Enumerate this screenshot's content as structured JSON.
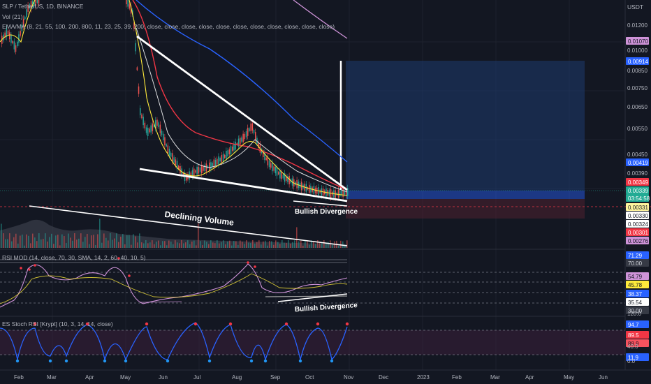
{
  "header": {
    "symbol": "SLP / TetherUS, 1D, BINANCE",
    "vol_label": "Vol (21)",
    "ema_label": "EMA/MA (8, 21, 55, 100, 200, 800, 11, 23, 25, 39, 200, close, close, close, close, close, close, close, close, close, close, close)",
    "rsi_label": "RSI MOD (14, close, 70, 30, SMA, 14, 2, 60, 40, 10, 5)",
    "stoch_label": "ES Stoch RSI [Krypt] (10, 3, 14, 14, close)"
  },
  "axis": {
    "currency": "USDT",
    "time_labels": [
      "Feb",
      "Mar",
      "Apr",
      "May",
      "Jun",
      "Jul",
      "Aug",
      "Sep",
      "Oct",
      "Nov",
      "Dec",
      "2023",
      "Feb",
      "Mar",
      "Apr",
      "May",
      "Jun"
    ],
    "price_ticks": [
      "0.01200",
      "0.01000",
      "0.00850",
      "0.00750",
      "0.00650",
      "0.00550",
      "0.00450",
      "0.00390"
    ]
  },
  "price_badges": [
    {
      "text": "0.01070",
      "bg": "#ce93d8",
      "fg": "#131722"
    },
    {
      "text": "0.00914",
      "bg": "#2962ff",
      "fg": "#ffffff"
    },
    {
      "text": "0.00419",
      "bg": "#2962ff",
      "fg": "#ffffff"
    },
    {
      "text": "0.00349",
      "bg": "#f23645",
      "fg": "#ffffff"
    },
    {
      "text": "0.00339",
      "bg": "#22ab94",
      "fg": "#ffffff"
    },
    {
      "text": "03:54:58",
      "bg": "#22ab94",
      "fg": "#ffffff"
    },
    {
      "text": "0.00331",
      "bg": "#fff59d",
      "fg": "#131722"
    },
    {
      "text": "0.00330",
      "bg": "#ffffff",
      "fg": "#131722"
    },
    {
      "text": "0.00324",
      "bg": "#ffffff",
      "fg": "#131722"
    },
    {
      "text": "0.00301",
      "bg": "#f23645",
      "fg": "#ffffff"
    },
    {
      "text": "0.00276",
      "bg": "#ce93d8",
      "fg": "#131722"
    }
  ],
  "rsi_badges": [
    {
      "text": "71.29",
      "bg": "#2962ff",
      "fg": "#ffffff"
    },
    {
      "text": "70.00",
      "bg": "#363a45",
      "fg": "#d1d4dc"
    },
    {
      "text": "54.79",
      "bg": "#ce93d8",
      "fg": "#131722"
    },
    {
      "text": "45.78",
      "bg": "#ffeb3b",
      "fg": "#131722"
    },
    {
      "text": "38.37",
      "bg": "#2962ff",
      "fg": "#ffffff"
    },
    {
      "text": "35.54",
      "bg": "#ffffff",
      "fg": "#131722"
    },
    {
      "text": "30.00",
      "bg": "#363a45",
      "fg": "#d1d4dc"
    }
  ],
  "stoch_badges": [
    {
      "text": "94.7",
      "bg": "#2962ff",
      "fg": "#ffffff"
    },
    {
      "text": "89.5",
      "bg": "#f23645",
      "fg": "#ffffff"
    },
    {
      "text": "88.9",
      "bg": "#f7525f",
      "fg": "#131722"
    },
    {
      "text": "11.9",
      "bg": "#2962ff",
      "fg": "#ffffff"
    }
  ],
  "stoch_ticks": [
    "120.0",
    "40.0",
    "0.0"
  ],
  "annotations": {
    "declining_volume": "Declining Volume",
    "bullish_div_price": "Bullish Divergence",
    "bullish_div_rsi": "Bullish Divergence"
  },
  "chart_data": {
    "type": "line",
    "price_axis_range": [
      0.0026,
      0.0133
    ],
    "lines": [
      {
        "name": "price",
        "color": "#ffffff",
        "points": [
          [
            "Feb",
            0.0118
          ],
          [
            "Mar",
            0.0135
          ],
          [
            "Apr",
            0.0142
          ],
          [
            "May",
            0.011
          ],
          [
            "Jun",
            0.0039
          ],
          [
            "Jul",
            0.004
          ],
          [
            "Aug",
            0.005
          ],
          [
            "Sep",
            0.0037
          ],
          [
            "Oct",
            0.0033
          ],
          [
            "Nov",
            0.0034
          ]
        ]
      },
      {
        "name": "ema-red",
        "color": "#f23645",
        "points": [
          [
            "May",
            0.012
          ],
          [
            "Jun",
            0.0075
          ],
          [
            "Jul",
            0.005
          ],
          [
            "Aug",
            0.0044
          ],
          [
            "Sep",
            0.0042
          ],
          [
            "Oct",
            0.0037
          ],
          [
            "Nov",
            0.0035
          ]
        ]
      },
      {
        "name": "ema-blue",
        "color": "#2962ff",
        "points": [
          [
            "May",
            0.014
          ],
          [
            "Jun",
            0.0097
          ],
          [
            "Jul",
            0.0076
          ],
          [
            "Aug",
            0.0066
          ],
          [
            "Sep",
            0.0055
          ],
          [
            "Oct",
            0.0047
          ],
          [
            "Nov",
            0.0042
          ]
        ]
      }
    ],
    "rsi": {
      "overbought": 70,
      "oversold": 30,
      "current": 54.79
    },
    "stoch": {
      "upper": 80,
      "lower": 20,
      "current": 94.7
    },
    "trendlines": [
      {
        "name": "falling-wedge-upper",
        "from": [
          "May",
          0.0112
        ],
        "to": [
          "Nov",
          0.0033
        ]
      },
      {
        "name": "falling-wedge-lower",
        "from": [
          "May",
          0.004
        ],
        "to": [
          "Nov",
          0.0032
        ]
      },
      {
        "name": "volume-trend",
        "from": [
          "Feb",
          "high"
        ],
        "to": [
          "Nov",
          "low"
        ]
      }
    ],
    "target_box": {
      "from": "Nov",
      "to": "Jun",
      "entry": 0.00339,
      "target": 0.00914,
      "stop": 0.00301
    }
  }
}
